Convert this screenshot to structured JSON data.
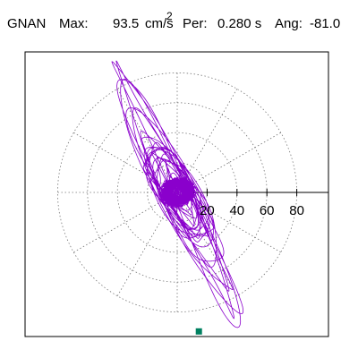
{
  "header": {
    "station": "GNAN",
    "max_label": "Max:",
    "max_value": "93.5",
    "max_unit": "cm/s",
    "max_unit_power": "2",
    "period_label": "Per:",
    "period_value": "0.280 s",
    "angle_label": "Ang:",
    "angle_value": "-81.0"
  },
  "colors": {
    "trace": "#8a00cc",
    "grid": "#777777",
    "axis": "#000000",
    "marker": "#008060",
    "frame": "#000000"
  },
  "chart_data": {
    "type": "line",
    "title": "",
    "xlabel": "",
    "ylabel": "",
    "polar_grid": {
      "rings": [
        20,
        40,
        60,
        80
      ],
      "ring_labels": [
        "20",
        "40",
        "60",
        "80"
      ],
      "spokes_deg": [
        0,
        30,
        60,
        90,
        120,
        150,
        180,
        210,
        240,
        270,
        300,
        330
      ],
      "style": "dotted"
    },
    "xlim": [
      -100,
      100
    ],
    "ylim": [
      -100,
      100
    ],
    "orbit": {
      "description_of_values": "particle-motion trace, cm/s^2",
      "peak_amplitude": 93.5,
      "peak_angle_deg": -81.0,
      "dominant_axis_deg": 112,
      "envelope_major": 88,
      "envelope_minor": 16
    },
    "end_marker": {
      "x": 14.5,
      "y": -93.0
    }
  }
}
